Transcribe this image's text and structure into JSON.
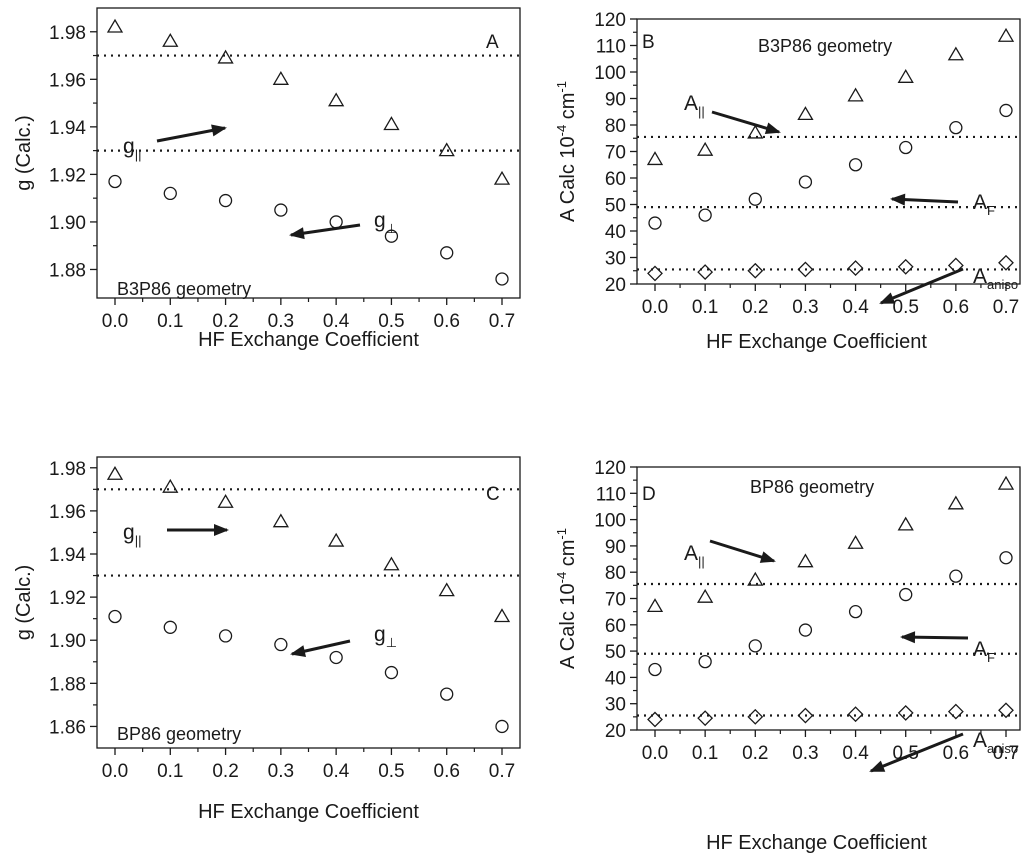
{
  "chart_data": [
    {
      "id": "A",
      "type": "scatter",
      "panel_letter": "A",
      "annotation": "B3P86 geometry",
      "xlabel": "HF Exchange Coefficient",
      "ylabel": "g (Calc.)",
      "xlim": [
        -0.05,
        0.75
      ],
      "ylim": [
        1.868,
        1.99
      ],
      "xticks": [
        "0.0",
        "0.1",
        "0.2",
        "0.3",
        "0.4",
        "0.5",
        "0.6",
        "0.7"
      ],
      "yticks": [
        "1.88",
        "1.90",
        "1.92",
        "1.94",
        "1.96",
        "1.98"
      ],
      "x": [
        0.0,
        0.1,
        0.2,
        0.3,
        0.4,
        0.5,
        0.6,
        0.7
      ],
      "series": [
        {
          "marker": "triangle",
          "values": [
            1.982,
            1.976,
            1.969,
            1.96,
            1.951,
            1.941,
            1.93,
            1.918
          ]
        },
        {
          "marker": "circle",
          "values": [
            1.917,
            1.912,
            1.909,
            1.905,
            1.9,
            1.894,
            1.887,
            1.876
          ]
        }
      ],
      "reference_lines": [
        1.97,
        1.93
      ],
      "labels": [
        {
          "text": "g",
          "sub": "||",
          "target_series": 0
        },
        {
          "text": "g",
          "sub": "⊥",
          "target_series": 1
        }
      ]
    },
    {
      "id": "B",
      "type": "scatter",
      "panel_letter": "B",
      "annotation": "B3P86 geometry",
      "xlabel": "HF Exchange Coefficient",
      "ylabel": "A Calc 10-4 cm-1",
      "xlim": [
        -0.05,
        0.75
      ],
      "ylim": [
        20,
        120
      ],
      "xticks": [
        "0.0",
        "0.1",
        "0.2",
        "0.3",
        "0.4",
        "0.5",
        "0.6",
        "0.7"
      ],
      "yticks": [
        "20",
        "30",
        "40",
        "50",
        "60",
        "70",
        "80",
        "90",
        "100",
        "110",
        "120"
      ],
      "x": [
        0.0,
        0.1,
        0.2,
        0.3,
        0.4,
        0.5,
        0.6,
        0.7
      ],
      "series": [
        {
          "marker": "triangle",
          "values": [
            67,
            70.5,
            77,
            84,
            91,
            98,
            106.5,
            113.5
          ]
        },
        {
          "marker": "circle",
          "values": [
            43,
            46,
            52,
            58.5,
            65,
            71.5,
            79,
            85.5
          ]
        },
        {
          "marker": "diamond",
          "values": [
            24,
            24.5,
            25,
            25.5,
            26,
            26.5,
            27,
            28
          ]
        }
      ],
      "reference_lines": [
        75.5,
        49,
        25.5
      ],
      "labels": [
        {
          "text": "A",
          "sub": "||",
          "target_series": 0
        },
        {
          "text": "A",
          "sub": "F",
          "target_series": 1
        },
        {
          "text": "A",
          "sub": "aniso",
          "target_series": 2
        }
      ]
    },
    {
      "id": "C",
      "type": "scatter",
      "panel_letter": "C",
      "annotation": "BP86 geometry",
      "xlabel": "HF Exchange Coefficient",
      "ylabel": "g (Calc.)",
      "xlim": [
        -0.05,
        0.75
      ],
      "ylim": [
        1.85,
        1.985
      ],
      "xticks": [
        "0.0",
        "0.1",
        "0.2",
        "0.3",
        "0.4",
        "0.5",
        "0.6",
        "0.7"
      ],
      "yticks": [
        "1.86",
        "1.88",
        "1.90",
        "1.92",
        "1.94",
        "1.96",
        "1.98"
      ],
      "x": [
        0.0,
        0.1,
        0.2,
        0.3,
        0.4,
        0.5,
        0.6,
        0.7
      ],
      "series": [
        {
          "marker": "triangle",
          "values": [
            1.977,
            1.971,
            1.964,
            1.955,
            1.946,
            1.935,
            1.923,
            1.911
          ]
        },
        {
          "marker": "circle",
          "values": [
            1.911,
            1.906,
            1.902,
            1.898,
            1.892,
            1.885,
            1.875,
            1.86
          ]
        }
      ],
      "reference_lines": [
        1.97,
        1.93
      ],
      "labels": [
        {
          "text": "g",
          "sub": "||",
          "target_series": 0
        },
        {
          "text": "g",
          "sub": "⊥",
          "target_series": 1
        }
      ]
    },
    {
      "id": "D",
      "type": "scatter",
      "panel_letter": "D",
      "annotation": "BP86 geometry",
      "xlabel": "HF Exchange Coefficient",
      "ylabel": "A Calc 10-4 cm-1",
      "xlim": [
        -0.05,
        0.75
      ],
      "ylim": [
        20,
        120
      ],
      "xticks": [
        "0.0",
        "0.1",
        "0.2",
        "0.3",
        "0.4",
        "0.5",
        "0.6",
        "0.7"
      ],
      "yticks": [
        "20",
        "30",
        "40",
        "50",
        "60",
        "70",
        "80",
        "90",
        "100",
        "110",
        "120"
      ],
      "x": [
        0.0,
        0.1,
        0.2,
        0.3,
        0.4,
        0.5,
        0.6,
        0.7
      ],
      "series": [
        {
          "marker": "triangle",
          "values": [
            67,
            70.5,
            77,
            84,
            91,
            98,
            106,
            113.5
          ]
        },
        {
          "marker": "circle",
          "values": [
            43,
            46,
            52,
            58,
            65,
            71.5,
            78.5,
            85.5
          ]
        },
        {
          "marker": "diamond",
          "values": [
            24,
            24.5,
            25,
            25.5,
            26,
            26.5,
            27,
            27.5
          ]
        }
      ],
      "reference_lines": [
        75.5,
        49,
        25.5
      ],
      "labels": [
        {
          "text": "A",
          "sub": "||",
          "target_series": 0
        },
        {
          "text": "A",
          "sub": "F",
          "target_series": 1
        },
        {
          "text": "A",
          "sub": "aniso",
          "target_series": 2
        }
      ]
    }
  ],
  "colors": {
    "ink": "#1a1a1a",
    "background": "#ffffff"
  }
}
